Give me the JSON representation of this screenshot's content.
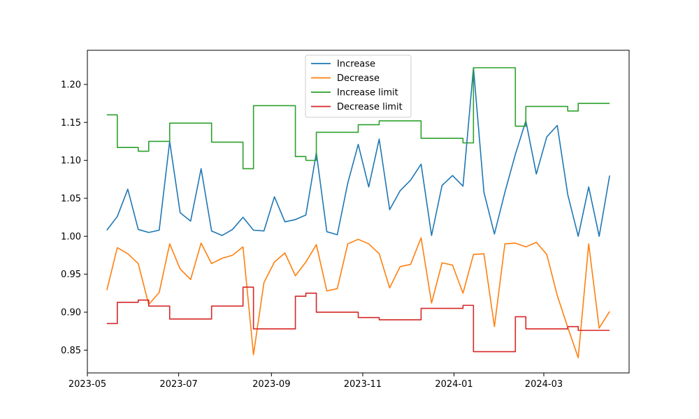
{
  "chart_data": {
    "type": "line",
    "title": "",
    "xlabel": "",
    "ylabel": "",
    "xlim": [
      "2023-05-01",
      "2024-04-27"
    ],
    "ylim": [
      0.82,
      1.245
    ],
    "grid": false,
    "legend_position": "top-center",
    "x_ticks": [
      "2023-05",
      "2023-07",
      "2023-09",
      "2023-11",
      "2024-01",
      "2024-03"
    ],
    "x_tick_dates": [
      "2023-05-01",
      "2023-07-01",
      "2023-09-01",
      "2023-11-01",
      "2024-01-01",
      "2024-03-01"
    ],
    "y_ticks": [
      "0.85",
      "0.90",
      "0.95",
      "1.00",
      "1.05",
      "1.10",
      "1.15",
      "1.20"
    ],
    "y_tick_values": [
      0.85,
      0.9,
      0.95,
      1.0,
      1.05,
      1.1,
      1.15,
      1.2
    ],
    "x": [
      "2023-05-14",
      "2023-05-21",
      "2023-05-28",
      "2023-06-04",
      "2023-06-11",
      "2023-06-18",
      "2023-06-25",
      "2023-07-02",
      "2023-07-09",
      "2023-07-16",
      "2023-07-23",
      "2023-07-30",
      "2023-08-06",
      "2023-08-13",
      "2023-08-20",
      "2023-08-27",
      "2023-09-03",
      "2023-09-10",
      "2023-09-17",
      "2023-09-24",
      "2023-10-01",
      "2023-10-08",
      "2023-10-15",
      "2023-10-22",
      "2023-10-29",
      "2023-11-05",
      "2023-11-12",
      "2023-11-19",
      "2023-11-26",
      "2023-12-03",
      "2023-12-10",
      "2023-12-17",
      "2023-12-24",
      "2023-12-31",
      "2024-01-07",
      "2024-01-14",
      "2024-01-21",
      "2024-01-28",
      "2024-02-04",
      "2024-02-11",
      "2024-02-18",
      "2024-02-25",
      "2024-03-03",
      "2024-03-10",
      "2024-03-17",
      "2024-03-24",
      "2024-03-31",
      "2024-04-07",
      "2024-04-14"
    ],
    "series": [
      {
        "name": "Increase",
        "color": "#1f77b4",
        "step": false,
        "values": [
          1.008,
          1.026,
          1.062,
          1.009,
          1.005,
          1.008,
          1.125,
          1.031,
          1.02,
          1.089,
          1.007,
          1.001,
          1.009,
          1.025,
          1.008,
          1.007,
          1.052,
          1.019,
          1.022,
          1.028,
          1.11,
          1.006,
          1.002,
          1.07,
          1.121,
          1.065,
          1.128,
          1.035,
          1.06,
          1.074,
          1.095,
          1.001,
          1.067,
          1.08,
          1.066,
          1.222,
          1.058,
          1.003,
          1.058,
          1.108,
          1.152,
          1.082,
          1.131,
          1.146,
          1.055,
          1.0,
          1.065,
          1.0,
          1.08
        ]
      },
      {
        "name": "Decrease",
        "color": "#ff7f0e",
        "step": false,
        "values": [
          0.929,
          0.985,
          0.977,
          0.964,
          0.91,
          0.926,
          0.99,
          0.957,
          0.943,
          0.991,
          0.964,
          0.971,
          0.975,
          0.986,
          0.844,
          0.939,
          0.966,
          0.978,
          0.948,
          0.966,
          0.989,
          0.928,
          0.931,
          0.99,
          0.996,
          0.99,
          0.977,
          0.932,
          0.96,
          0.963,
          0.998,
          0.912,
          0.965,
          0.962,
          0.925,
          0.976,
          0.977,
          0.881,
          0.99,
          0.991,
          0.986,
          0.992,
          0.976,
          0.922,
          0.88,
          0.84,
          0.99,
          0.879,
          0.901
        ]
      },
      {
        "name": "Increase limit",
        "color": "#2ca02c",
        "step": true,
        "values": [
          1.16,
          1.117,
          1.117,
          1.112,
          1.125,
          1.125,
          1.149,
          1.149,
          1.149,
          1.149,
          1.124,
          1.124,
          1.124,
          1.089,
          1.172,
          1.172,
          1.172,
          1.172,
          1.105,
          1.1,
          1.137,
          1.137,
          1.137,
          1.137,
          1.147,
          1.147,
          1.152,
          1.152,
          1.152,
          1.152,
          1.129,
          1.129,
          1.129,
          1.129,
          1.123,
          1.222,
          1.222,
          1.222,
          1.222,
          1.145,
          1.171,
          1.171,
          1.171,
          1.171,
          1.165,
          1.175,
          1.175,
          1.175,
          1.175
        ]
      },
      {
        "name": "Decrease limit",
        "color": "#d62728",
        "step": true,
        "values": [
          0.885,
          0.913,
          0.913,
          0.916,
          0.908,
          0.908,
          0.891,
          0.891,
          0.891,
          0.891,
          0.908,
          0.908,
          0.908,
          0.933,
          0.878,
          0.878,
          0.878,
          0.878,
          0.921,
          0.925,
          0.9,
          0.9,
          0.9,
          0.9,
          0.893,
          0.893,
          0.89,
          0.89,
          0.89,
          0.89,
          0.905,
          0.905,
          0.905,
          0.905,
          0.909,
          0.848,
          0.848,
          0.848,
          0.848,
          0.894,
          0.878,
          0.878,
          0.878,
          0.878,
          0.881,
          0.876,
          0.876,
          0.876,
          0.876
        ]
      }
    ]
  }
}
